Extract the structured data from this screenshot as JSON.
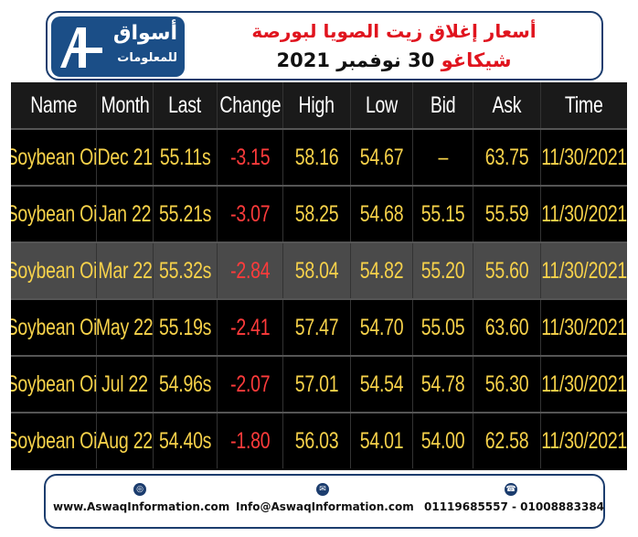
{
  "header": {
    "logo_text_ar": "أسواق",
    "logo_subtext_ar": "للمعلومات",
    "title_line1": "أسعار إغلاق زيت الصويا لبورصة",
    "title_exchange": "شيكاغو",
    "title_date": "30 نوفمبر 2021",
    "accent_color": "#e0141e",
    "brand_color": "#1b4e87"
  },
  "table": {
    "columns": [
      "Name",
      "Month",
      "Last",
      "Change",
      "High",
      "Low",
      "Bid",
      "Ask",
      "Time"
    ],
    "rows": [
      {
        "name": "Soybean Oil",
        "month": "Dec 21",
        "last": "55.11s",
        "change": "-3.15",
        "high": "58.16",
        "low": "54.67",
        "bid": "–",
        "ask": "63.75",
        "time": "11/30/2021"
      },
      {
        "name": "Soybean Oil",
        "month": "Jan 22",
        "last": "55.21s",
        "change": "-3.07",
        "high": "58.25",
        "low": "54.68",
        "bid": "55.15",
        "ask": "55.59",
        "time": "11/30/2021"
      },
      {
        "name": "Soybean Oil",
        "month": "Mar 22",
        "last": "55.32s",
        "change": "-2.84",
        "high": "58.04",
        "low": "54.82",
        "bid": "55.20",
        "ask": "55.60",
        "time": "11/30/2021"
      },
      {
        "name": "Soybean Oil",
        "month": "May 22",
        "last": "55.19s",
        "change": "-2.41",
        "high": "57.47",
        "low": "54.70",
        "bid": "55.05",
        "ask": "63.60",
        "time": "11/30/2021"
      },
      {
        "name": "Soybean Oil",
        "month": "Jul 22",
        "last": "54.96s",
        "change": "-2.07",
        "high": "57.01",
        "low": "54.54",
        "bid": "54.78",
        "ask": "56.30",
        "time": "11/30/2021"
      },
      {
        "name": "Soybean Oil",
        "month": "Aug 22",
        "last": "54.40s",
        "change": "-1.80",
        "high": "56.03",
        "low": "54.01",
        "bid": "54.00",
        "ask": "62.58",
        "time": "11/30/2021"
      }
    ],
    "value_color": "#f7d24a",
    "negative_color": "#ff3b3b"
  },
  "footer": {
    "website": "www.AswaqInformation.com",
    "email": "Info@AswaqInformation.com",
    "phones": "01119685557 - 01008883384",
    "icons": [
      "globe-icon",
      "mail-icon",
      "phone-icon"
    ]
  }
}
